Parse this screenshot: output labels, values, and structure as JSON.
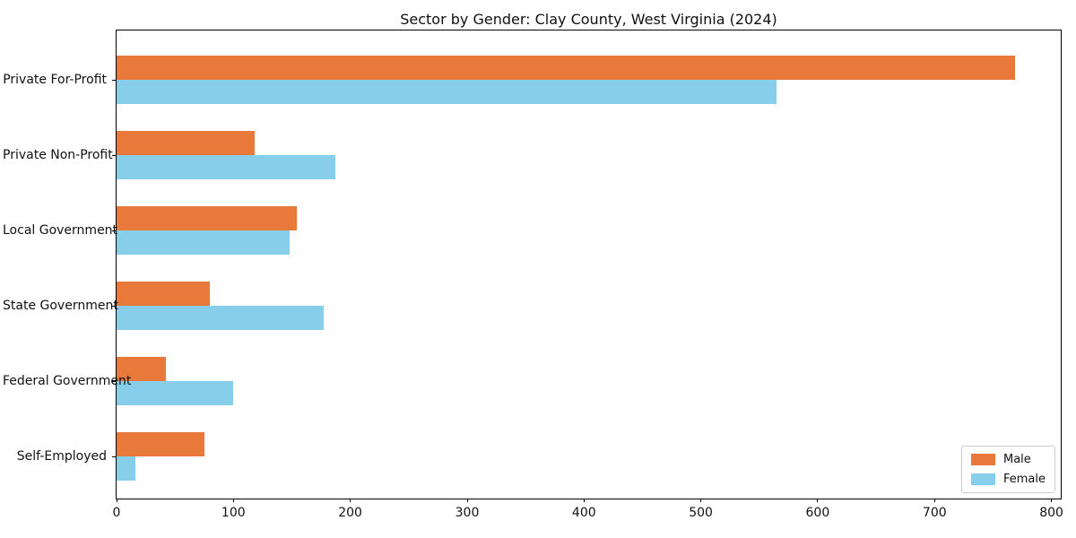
{
  "title": "Sector by Gender: Clay County, West Virginia (2024)",
  "chart_data": {
    "type": "bar",
    "orientation": "horizontal",
    "title": "Sector by Gender: Clay County, West Virginia (2024)",
    "categories": [
      "Private For-Profit",
      "Private Non-Profit",
      "Local Government",
      "State Government",
      "Federal Government",
      "Self-Employed"
    ],
    "series": [
      {
        "name": "Male",
        "color": "#E8793B",
        "values": [
          769,
          118,
          154,
          80,
          42,
          75
        ]
      },
      {
        "name": "Female",
        "color": "#87CEEB",
        "values": [
          565,
          187,
          148,
          177,
          100,
          16
        ]
      }
    ],
    "xlabel": "",
    "ylabel": "",
    "xlim": [
      0,
      808
    ],
    "xticks": [
      0,
      100,
      200,
      300,
      400,
      500,
      600,
      700,
      800
    ],
    "grid": false,
    "legend_position": "lower right",
    "legend_entries": [
      "Male",
      "Female"
    ]
  }
}
